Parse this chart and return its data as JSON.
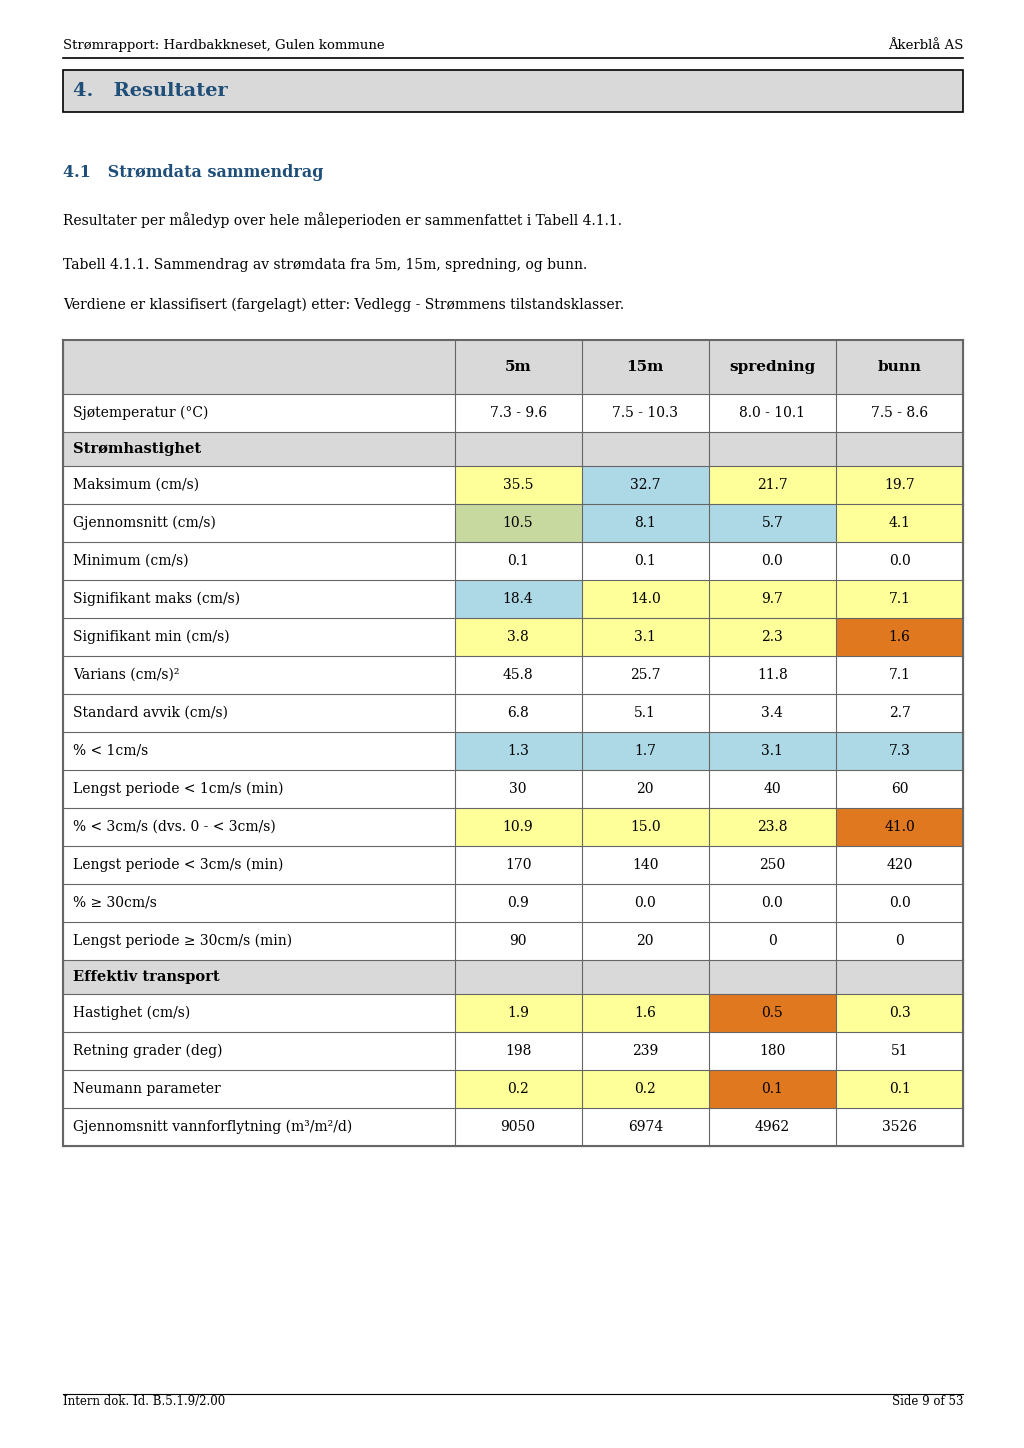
{
  "header_left": "Strømrapport: Hardbakkneset, Gulen kommune",
  "header_right": "Åkerblå AS",
  "section_title": "4.   Resultater",
  "subsection_title": "4.1   Strømdata sammendrag",
  "para1": "Resultater per måledyp over hele måleperioden er sammenfattet i Tabell 4.1.1.",
  "para2": "Tabell 4.1.1. Sammendrag av strømdata fra 5m, 15m, spredning, og bunn.",
  "para3": "Verdiene er klassifisert (fargelagt) etter: Vedlegg - Strømmens tilstandsklasser.",
  "footer_left": "Intern dok. Id. B.5.1.9/2.00",
  "footer_right": "Side 9 of 53",
  "col_headers": [
    "",
    "5m",
    "15m",
    "spredning",
    "bunn"
  ],
  "rows": [
    {
      "label": "Sjøtemperatur (°C)",
      "values": [
        "7.3 - 9.6",
        "7.5 - 10.3",
        "8.0 - 10.1",
        "7.5 - 8.6"
      ],
      "colors": [
        "white",
        "white",
        "white",
        "white"
      ],
      "bold": false,
      "section_header": false
    },
    {
      "label": "Strømhastighet",
      "values": [
        "",
        "",
        "",
        ""
      ],
      "colors": [
        "#d9d9d9",
        "#d9d9d9",
        "#d9d9d9",
        "#d9d9d9"
      ],
      "bold": true,
      "section_header": true
    },
    {
      "label": "Maksimum (cm/s)",
      "values": [
        "35.5",
        "32.7",
        "21.7",
        "19.7"
      ],
      "colors": [
        "#ffff99",
        "#add8e6",
        "#ffff99",
        "#ffff99"
      ],
      "bold": false,
      "section_header": false
    },
    {
      "label": "Gjennomsnitt (cm/s)",
      "values": [
        "10.5",
        "8.1",
        "5.7",
        "4.1"
      ],
      "colors": [
        "#c8d9a0",
        "#add8e6",
        "#add8e6",
        "#ffff99"
      ],
      "bold": false,
      "section_header": false
    },
    {
      "label": "Minimum (cm/s)",
      "values": [
        "0.1",
        "0.1",
        "0.0",
        "0.0"
      ],
      "colors": [
        "white",
        "white",
        "white",
        "white"
      ],
      "bold": false,
      "section_header": false
    },
    {
      "label": "Signifikant maks (cm/s)",
      "values": [
        "18.4",
        "14.0",
        "9.7",
        "7.1"
      ],
      "colors": [
        "#add8e6",
        "#ffff99",
        "#ffff99",
        "#ffff99"
      ],
      "bold": false,
      "section_header": false
    },
    {
      "label": "Signifikant min (cm/s)",
      "values": [
        "3.8",
        "3.1",
        "2.3",
        "1.6"
      ],
      "colors": [
        "#ffff99",
        "#ffff99",
        "#ffff99",
        "#e07820"
      ],
      "bold": false,
      "section_header": false
    },
    {
      "label": "Varians (cm/s)²",
      "values": [
        "45.8",
        "25.7",
        "11.8",
        "7.1"
      ],
      "colors": [
        "white",
        "white",
        "white",
        "white"
      ],
      "bold": false,
      "section_header": false
    },
    {
      "label": "Standard avvik (cm/s)",
      "values": [
        "6.8",
        "5.1",
        "3.4",
        "2.7"
      ],
      "colors": [
        "white",
        "white",
        "white",
        "white"
      ],
      "bold": false,
      "section_header": false
    },
    {
      "label": "% < 1cm/s",
      "values": [
        "1.3",
        "1.7",
        "3.1",
        "7.3"
      ],
      "colors": [
        "#add8e6",
        "#add8e6",
        "#add8e6",
        "#add8e6"
      ],
      "bold": false,
      "section_header": false
    },
    {
      "label": "Lengst periode < 1cm/s (min)",
      "values": [
        "30",
        "20",
        "40",
        "60"
      ],
      "colors": [
        "white",
        "white",
        "white",
        "white"
      ],
      "bold": false,
      "section_header": false
    },
    {
      "label": "% < 3cm/s (dvs. 0 - < 3cm/s)",
      "values": [
        "10.9",
        "15.0",
        "23.8",
        "41.0"
      ],
      "colors": [
        "#ffff99",
        "#ffff99",
        "#ffff99",
        "#e07820"
      ],
      "bold": false,
      "section_header": false
    },
    {
      "label": "Lengst periode < 3cm/s (min)",
      "values": [
        "170",
        "140",
        "250",
        "420"
      ],
      "colors": [
        "white",
        "white",
        "white",
        "white"
      ],
      "bold": false,
      "section_header": false
    },
    {
      "label": "% ≥ 30cm/s",
      "values": [
        "0.9",
        "0.0",
        "0.0",
        "0.0"
      ],
      "colors": [
        "white",
        "white",
        "white",
        "white"
      ],
      "bold": false,
      "section_header": false
    },
    {
      "label": "Lengst periode ≥ 30cm/s (min)",
      "values": [
        "90",
        "20",
        "0",
        "0"
      ],
      "colors": [
        "white",
        "white",
        "white",
        "white"
      ],
      "bold": false,
      "section_header": false
    },
    {
      "label": "Effektiv transport",
      "values": [
        "",
        "",
        "",
        ""
      ],
      "colors": [
        "#d9d9d9",
        "#d9d9d9",
        "#d9d9d9",
        "#d9d9d9"
      ],
      "bold": true,
      "section_header": true
    },
    {
      "label": "Hastighet (cm/s)",
      "values": [
        "1.9",
        "1.6",
        "0.5",
        "0.3"
      ],
      "colors": [
        "#ffff99",
        "#ffff99",
        "#e07820",
        "#ffff99"
      ],
      "bold": false,
      "section_header": false
    },
    {
      "label": "Retning grader (deg)",
      "values": [
        "198",
        "239",
        "180",
        "51"
      ],
      "colors": [
        "white",
        "white",
        "white",
        "white"
      ],
      "bold": false,
      "section_header": false
    },
    {
      "label": "Neumann parameter",
      "values": [
        "0.2",
        "0.2",
        "0.1",
        "0.1"
      ],
      "colors": [
        "#ffff99",
        "#ffff99",
        "#e07820",
        "#ffff99"
      ],
      "bold": false,
      "section_header": false
    },
    {
      "label": "Gjennomsnitt vannforflytning (m³/m²/d)",
      "values": [
        "9050",
        "6974",
        "4962",
        "3526"
      ],
      "colors": [
        "white",
        "white",
        "white",
        "white"
      ],
      "bold": false,
      "section_header": false
    }
  ],
  "table_header_bg": "#d9d9d9",
  "section_header_bg": "#d9d9d9",
  "page_bg": "white",
  "text_color": "#333333",
  "blue_text": "#1f4e79",
  "border_color": "#666666"
}
